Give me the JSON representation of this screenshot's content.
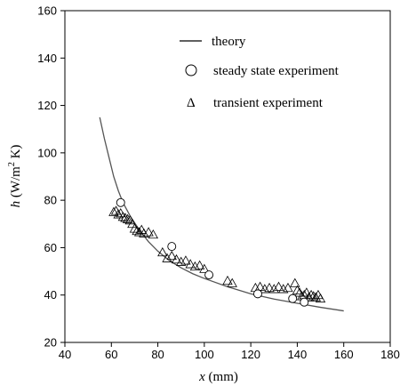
{
  "chart_data": {
    "type": "scatter",
    "xlim": [
      40,
      180
    ],
    "ylim": [
      20,
      160
    ],
    "xticks": [
      40,
      60,
      80,
      100,
      120,
      140,
      160,
      180
    ],
    "yticks": [
      20,
      40,
      60,
      80,
      100,
      120,
      140,
      160
    ],
    "xlabel": {
      "var": "x",
      "unit": " (mm)"
    },
    "ylabel": {
      "var": "h",
      "unit_pre": " (W/m",
      "sup": "2",
      "unit_post": " K)"
    },
    "grid": false,
    "legend_position": "top-center",
    "series": [
      {
        "name": "theory",
        "kind": "line",
        "color": "#555555",
        "x": [
          55,
          57,
          59,
          61,
          63,
          65,
          68,
          72,
          76,
          80,
          85,
          90,
          95,
          100,
          110,
          120,
          130,
          140,
          150,
          160
        ],
        "y": [
          115,
          106,
          98,
          90,
          84,
          79,
          73.5,
          67.5,
          62.5,
          58.5,
          54.5,
          51.5,
          49,
          47,
          43.5,
          40.5,
          38.3,
          36.5,
          34.8,
          33.3
        ]
      },
      {
        "name": "steady state experiment",
        "kind": "marker",
        "marker": "circle",
        "x": [
          64,
          86,
          102,
          123,
          138,
          143
        ],
        "y": [
          79,
          60.5,
          48.5,
          40.5,
          38.5,
          37
        ]
      },
      {
        "name": "transient experiment",
        "legend_symbol": "Δ",
        "kind": "marker",
        "marker": "triangle",
        "x": [
          61,
          62,
          63,
          64,
          65,
          66,
          67,
          68,
          69,
          70,
          71,
          72,
          73,
          74,
          76,
          78,
          82,
          84,
          86,
          88,
          90,
          92,
          94,
          96,
          98,
          100,
          110,
          112,
          122,
          124,
          126,
          128,
          130,
          132,
          134,
          136,
          139,
          140,
          141,
          142,
          143,
          144,
          145,
          146,
          147,
          148,
          149,
          150
        ],
        "y": [
          75,
          75.5,
          74,
          74.5,
          73,
          72.5,
          72,
          71.5,
          70,
          68,
          67,
          66.5,
          67.5,
          66,
          66.5,
          65.5,
          58,
          55.5,
          56.5,
          55,
          54,
          54.5,
          53,
          52,
          52.5,
          51,
          46,
          45,
          43,
          43.5,
          42.5,
          43,
          42.5,
          43.5,
          42.5,
          43,
          45,
          42,
          41,
          39.5,
          40,
          41,
          39,
          40,
          39.5,
          39,
          40,
          38.5
        ]
      }
    ]
  }
}
